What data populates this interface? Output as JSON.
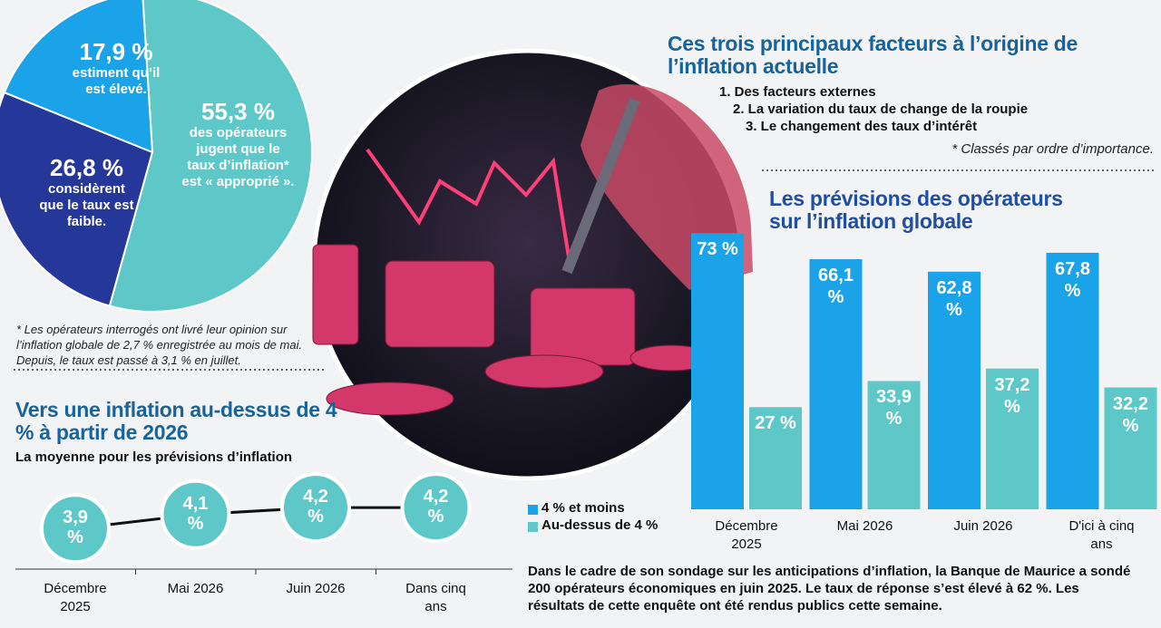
{
  "chart_data": [
    {
      "type": "pie",
      "labels": [
        "estiment qu’il est élevé.",
        "des opérateurs jugent que le taux d’inflation* est « approprié ».",
        "considèrent que le taux est faible."
      ],
      "values": [
        17.9,
        55.3,
        26.8
      ],
      "value_labels": [
        "17,9 %",
        "55,3 %",
        "26,8 %"
      ],
      "colors": [
        "#1aa3e8",
        "#5ec8c8",
        "#25389a"
      ],
      "footnote": "* Les opérateurs interrogés ont livré leur opinion sur l’inflation globale de 2,7 % enregistrée au mois de mai. Depuis, le taux est passé à 3,1 % en juillet."
    },
    {
      "type": "line",
      "title": "Vers une inflation au-dessus de 4 % à partir de 2026",
      "subtitle": "La moyenne pour les prévisions d’inflation",
      "categories": [
        "Décembre 2025",
        "Mai 2026",
        "Juin 2026",
        "Dans cinq ans"
      ],
      "values": [
        3.9,
        4.1,
        4.2,
        4.2
      ],
      "value_labels": [
        "3,9 %",
        "4,1 %",
        "4,2 %",
        "4,2 %"
      ],
      "color": "#5ec8c8",
      "ylim": [
        3.5,
        4.5
      ]
    },
    {
      "type": "bar",
      "title": "Les prévisions des opérateurs sur l’inflation globale",
      "categories": [
        "Décembre 2025",
        "Mai 2026",
        "Juin 2026",
        "D'ici à cinq ans"
      ],
      "series": [
        {
          "name": "4 % et moins",
          "color": "#1aa3e8",
          "values": [
            73,
            66.1,
            62.8,
            67.8
          ],
          "value_labels": [
            "73 %",
            "66,1 %",
            "62,8 %",
            "67,8 %"
          ]
        },
        {
          "name": "Au-dessus de 4 %",
          "color": "#5ec8c8",
          "values": [
            27,
            33.9,
            37.2,
            32.2
          ],
          "value_labels": [
            "27 %",
            "33,9 %",
            "37,2 %",
            "32,2 %"
          ]
        }
      ],
      "ylim": [
        0,
        80
      ],
      "legend": "bottom-left"
    }
  ],
  "factors": {
    "title": "Ces trois principaux facteurs à l’origine de l’inflation actuelle",
    "items": [
      "1. Des facteurs externes",
      "2. La variation du taux de change de la roupie",
      "3. Le changement des taux d’intérêt"
    ],
    "note": "* Classés par ordre d’importance."
  },
  "description": "Dans le cadre de son sondage sur les anticipations d’inflation, la Banque de Maurice a sondé 200 opérateurs économiques en juin 2025. Le taux de réponse s’est élevé à 62 %. Les résultats de cette enquête ont été rendus publics cette semaine."
}
